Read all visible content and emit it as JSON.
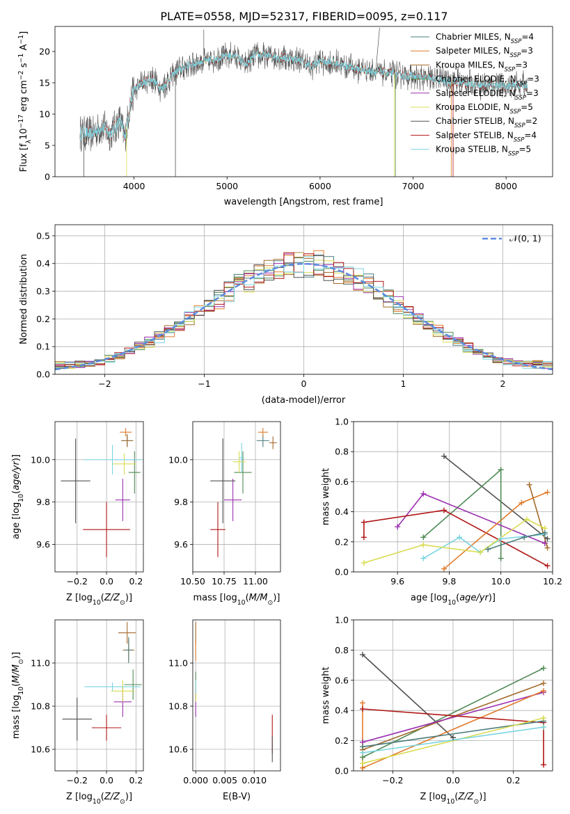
{
  "figure": {
    "title": "PLATE=0558, MJD=52317, FIBERID=0095, z=0.117"
  },
  "colors": [
    "#4a7a7a",
    "#e07a2a",
    "#a46a2a",
    "#4f8a55",
    "#9b30b0",
    "#d8dc50",
    "#505050",
    "#b01515",
    "#7ad4e0"
  ],
  "chart_data": [
    {
      "id": "spectrum",
      "type": "line",
      "xlabel": "wavelength [Angstrom, rest frame]",
      "ylabel": "Flux [f_λ 10^−17 erg cm^−2 s^−1 A^−1]",
      "xlim": [
        3150,
        8500
      ],
      "ylim": [
        0,
        24
      ],
      "xticks": [
        4000,
        5000,
        6000,
        7000,
        8000
      ],
      "yticks": [
        0,
        5,
        10,
        15,
        20
      ],
      "legend_position": "top-right",
      "series_labels": [
        [
          "Chabrier MILES, N",
          "SSP",
          "=4"
        ],
        [
          "Salpeter MILES, N",
          "SSP",
          "=3"
        ],
        [
          "Kroupa MILES, N",
          "SSP",
          "=3"
        ],
        [
          "Chabrier ELODIE, N",
          "SSP",
          "=3"
        ],
        [
          "Salpeter ELODIE, N",
          "SSP",
          "=3"
        ],
        [
          "Kroupa ELODIE, N",
          "SSP",
          "=5"
        ],
        [
          "Chabrier STELIB, N",
          "SSP",
          "=2"
        ],
        [
          "Salpeter STELIB, N",
          "SSP",
          "=4"
        ],
        [
          "Kroupa STELIB, N",
          "SSP",
          "=5"
        ]
      ],
      "continuum": [
        [
          3420,
          7.0
        ],
        [
          3550,
          6.8
        ],
        [
          3650,
          8.0
        ],
        [
          3750,
          6.9
        ],
        [
          3850,
          9.0
        ],
        [
          3900,
          6.0
        ],
        [
          3950,
          11.0
        ],
        [
          4000,
          14.0
        ],
        [
          4100,
          15.0
        ],
        [
          4200,
          15.5
        ],
        [
          4300,
          14.0
        ],
        [
          4400,
          16.0
        ],
        [
          4500,
          17.2
        ],
        [
          4600,
          17.8
        ],
        [
          4700,
          18.3
        ],
        [
          4800,
          18.5
        ],
        [
          4900,
          19.0
        ],
        [
          5000,
          19.3
        ],
        [
          5100,
          19.2
        ],
        [
          5200,
          17.8
        ],
        [
          5300,
          19.5
        ],
        [
          5400,
          19.4
        ],
        [
          5500,
          19.2
        ],
        [
          5600,
          19.0
        ],
        [
          5700,
          18.8
        ],
        [
          5800,
          18.6
        ],
        [
          5900,
          17.6
        ],
        [
          6000,
          18.5
        ],
        [
          6100,
          18.3
        ],
        [
          6200,
          18.0
        ],
        [
          6300,
          17.6
        ],
        [
          6400,
          17.2
        ],
        [
          6500,
          17.0
        ],
        [
          6600,
          16.8
        ],
        [
          6700,
          16.6
        ],
        [
          6800,
          16.4
        ],
        [
          6900,
          16.2
        ],
        [
          7000,
          16.0
        ],
        [
          7100,
          15.8
        ],
        [
          7200,
          15.6
        ],
        [
          7400,
          15.2
        ],
        [
          7600,
          14.9
        ],
        [
          7800,
          14.6
        ],
        [
          8000,
          14.5
        ],
        [
          8230,
          14.6
        ]
      ]
    },
    {
      "id": "residuals",
      "type": "line",
      "xlabel": "(data-model)/error",
      "ylabel": "Normed distribution",
      "xlim": [
        -2.5,
        2.5
      ],
      "ylim": [
        0,
        0.54
      ],
      "xticks": [
        -2,
        -1,
        0,
        1,
        2
      ],
      "yticks": [
        0.0,
        0.1,
        0.2,
        0.3,
        0.4,
        0.5
      ],
      "legend_position": "top-right",
      "reference_label": "𝒩(0, 1)",
      "reference_mean": 0,
      "reference_sigma": 1
    },
    {
      "id": "age-vs-Z",
      "type": "scatter",
      "xlabel": "Z [log10(Z/Z⊙)]",
      "ylabel": "age  [log10(age/yr)]",
      "xlim": [
        -0.35,
        0.25
      ],
      "ylim": [
        9.47,
        10.18
      ],
      "xticks": [
        -0.2,
        0.0,
        0.2
      ],
      "yticks": [
        9.6,
        9.8,
        10.0
      ],
      "points": [
        {
          "x": 0.14,
          "y": 10.09,
          "xerr": 0.04,
          "yerr": 0.03,
          "c": 0
        },
        {
          "x": 0.13,
          "y": 10.13,
          "xerr": 0.04,
          "yerr": 0.02,
          "c": 1
        },
        {
          "x": 0.14,
          "y": 10.09,
          "xerr": 0.04,
          "yerr": 0.03,
          "c": 2
        },
        {
          "x": 0.19,
          "y": 9.94,
          "xerr": 0.04,
          "yerr": 0.1,
          "c": 3
        },
        {
          "x": 0.11,
          "y": 9.81,
          "xerr": 0.05,
          "yerr": 0.1,
          "c": 4
        },
        {
          "x": 0.12,
          "y": 9.98,
          "xerr": 0.08,
          "yerr": 0.05,
          "c": 5
        },
        {
          "x": -0.21,
          "y": 9.9,
          "xerr": 0.1,
          "yerr": 0.2,
          "c": 6
        },
        {
          "x": 0.0,
          "y": 9.67,
          "xerr": 0.16,
          "yerr": 0.13,
          "c": 7
        },
        {
          "x": 0.04,
          "y": 10.0,
          "xerr": 0.2,
          "yerr": 0.07,
          "c": 8
        }
      ]
    },
    {
      "id": "age-vs-mass",
      "type": "scatter",
      "xlabel": "mass [log10(M/M⊙)]",
      "ylabel": "",
      "xlim": [
        10.5,
        11.2
      ],
      "ylim": [
        9.47,
        10.18
      ],
      "xticks": [
        10.5,
        10.75,
        11.0
      ],
      "yticks": [
        9.6,
        9.8,
        10.0
      ],
      "points": [
        {
          "x": 11.06,
          "y": 10.09,
          "xerr": 0.05,
          "yerr": 0.03,
          "c": 0
        },
        {
          "x": 11.06,
          "y": 10.13,
          "xerr": 0.04,
          "yerr": 0.02,
          "c": 1
        },
        {
          "x": 11.14,
          "y": 10.08,
          "xerr": 0.03,
          "yerr": 0.03,
          "c": 2
        },
        {
          "x": 10.9,
          "y": 9.94,
          "xerr": 0.07,
          "yerr": 0.1,
          "c": 3
        },
        {
          "x": 10.82,
          "y": 9.81,
          "xerr": 0.07,
          "yerr": 0.1,
          "c": 4
        },
        {
          "x": 10.87,
          "y": 9.99,
          "xerr": 0.05,
          "yerr": 0.05,
          "c": 5
        },
        {
          "x": 10.74,
          "y": 9.9,
          "xerr": 0.1,
          "yerr": 0.2,
          "c": 6
        },
        {
          "x": 10.7,
          "y": 9.67,
          "xerr": 0.06,
          "yerr": 0.13,
          "c": 7
        },
        {
          "x": 10.89,
          "y": 10.01,
          "xerr": 0.02,
          "yerr": 0.07,
          "c": 8
        }
      ]
    },
    {
      "id": "mw-vs-age",
      "type": "line",
      "xlabel": "age  [log10(age/yr)]",
      "ylabel": "mass weight",
      "xlim": [
        9.43,
        10.2
      ],
      "ylim": [
        0.0,
        1.0
      ],
      "xticks": [
        9.6,
        9.8,
        10.0,
        10.2
      ],
      "yticks": [
        0.0,
        0.2,
        0.4,
        0.6,
        0.8,
        1.0
      ],
      "series": [
        {
          "c": 6,
          "points": [
            [
              9.78,
              0.77
            ],
            [
              10.18,
              0.22
            ]
          ]
        },
        {
          "c": 3,
          "points": [
            [
              9.7,
              0.23
            ],
            [
              10.0,
              0.68
            ],
            [
              10.0,
              0.09
            ]
          ]
        },
        {
          "c": 4,
          "points": [
            [
              9.6,
              0.3
            ],
            [
              9.7,
              0.52
            ],
            [
              10.17,
              0.19
            ]
          ]
        },
        {
          "c": 7,
          "points": [
            [
              9.47,
              0.23
            ],
            [
              9.47,
              0.33
            ],
            [
              9.78,
              0.41
            ],
            [
              10.18,
              0.04
            ]
          ]
        },
        {
          "c": 1,
          "points": [
            [
              9.78,
              0.02
            ],
            [
              10.08,
              0.46
            ],
            [
              10.18,
              0.53
            ]
          ]
        },
        {
          "c": 2,
          "points": [
            [
              10.11,
              0.58
            ],
            [
              10.18,
              0.16
            ]
          ]
        },
        {
          "c": 8,
          "points": [
            [
              9.7,
              0.09
            ],
            [
              9.84,
              0.23
            ],
            [
              9.92,
              0.13
            ],
            [
              10.0,
              0.22
            ],
            [
              10.17,
              0.25
            ]
          ]
        },
        {
          "c": 5,
          "points": [
            [
              9.47,
              0.06
            ],
            [
              9.7,
              0.18
            ],
            [
              9.92,
              0.13
            ],
            [
              10.1,
              0.35
            ],
            [
              10.17,
              0.29
            ]
          ]
        },
        {
          "c": 0,
          "points": [
            [
              9.95,
              0.15
            ],
            [
              10.09,
              0.23
            ],
            [
              10.17,
              0.26
            ]
          ]
        }
      ]
    },
    {
      "id": "mass-vs-Z",
      "type": "scatter",
      "xlabel": "Z [log10(Z/Z⊙)]",
      "ylabel": "mass [log10(M/M⊙)]",
      "xlim": [
        -0.35,
        0.25
      ],
      "ylim": [
        10.5,
        11.2
      ],
      "xticks": [
        -0.2,
        0.0,
        0.2
      ],
      "yticks": [
        10.6,
        10.8,
        11.0
      ],
      "points": [
        {
          "x": 0.14,
          "y": 11.14,
          "xerr": 0.06,
          "yerr": 0.05,
          "c": 2
        },
        {
          "x": 0.15,
          "y": 11.06,
          "xerr": 0.04,
          "yerr": 0.05,
          "c": 1
        },
        {
          "x": 0.15,
          "y": 11.06,
          "xerr": 0.03,
          "yerr": 0.06,
          "c": 0
        },
        {
          "x": 0.18,
          "y": 10.9,
          "xerr": 0.06,
          "yerr": 0.07,
          "c": 3
        },
        {
          "x": 0.11,
          "y": 10.82,
          "xerr": 0.06,
          "yerr": 0.07,
          "c": 4
        },
        {
          "x": 0.11,
          "y": 10.87,
          "xerr": 0.08,
          "yerr": 0.05,
          "c": 5
        },
        {
          "x": -0.2,
          "y": 10.74,
          "xerr": 0.1,
          "yerr": 0.1,
          "c": 6
        },
        {
          "x": 0.0,
          "y": 10.7,
          "xerr": 0.1,
          "yerr": 0.06,
          "c": 7
        },
        {
          "x": 0.04,
          "y": 10.89,
          "xerr": 0.19,
          "yerr": 0.02,
          "c": 8
        }
      ]
    },
    {
      "id": "mass-vs-ebv",
      "type": "scatter",
      "xlabel": "E(B-V)",
      "ylabel": "",
      "xlim": [
        -0.0005,
        0.0145
      ],
      "ylim": [
        10.5,
        11.2
      ],
      "xticks": [
        0.0,
        0.005,
        0.01
      ],
      "yticks": [
        10.6,
        10.8,
        11.0
      ],
      "points": [
        {
          "x": 0.0,
          "y": 11.14,
          "xerr": 0.0,
          "yerr": 0.05,
          "c": 2
        },
        {
          "x": 0.0,
          "y": 11.06,
          "xerr": 0.0,
          "yerr": 0.05,
          "c": 1
        },
        {
          "x": 0.0,
          "y": 10.9,
          "xerr": 0.0,
          "yerr": 0.06,
          "c": 3
        },
        {
          "x": 0.0,
          "y": 10.82,
          "xerr": 0.0,
          "yerr": 0.07,
          "c": 4
        },
        {
          "x": 0.0,
          "y": 10.87,
          "xerr": 0.0,
          "yerr": 0.05,
          "c": 5
        },
        {
          "x": 0.0,
          "y": 10.89,
          "xerr": 0.0,
          "yerr": 0.03,
          "c": 8
        },
        {
          "x": 0.0131,
          "y": 10.67,
          "xerr": 0.0,
          "yerr": 0.09,
          "c": 7
        },
        {
          "x": 0.0131,
          "y": 10.6,
          "xerr": 0.0,
          "yerr": 0.06,
          "c": 6
        }
      ]
    },
    {
      "id": "mw-vs-Z",
      "type": "line",
      "xlabel": "Z [log10(Z/Z⊙)]",
      "ylabel": "mass weight",
      "xlim": [
        -0.33,
        0.33
      ],
      "ylim": [
        0.0,
        1.0
      ],
      "xticks": [
        -0.2,
        0.0,
        0.2
      ],
      "yticks": [
        0.0,
        0.2,
        0.4,
        0.6,
        0.8,
        1.0
      ],
      "series": [
        {
          "c": 6,
          "points": [
            [
              -0.3,
              0.77
            ],
            [
              0.0,
              0.22
            ]
          ]
        },
        {
          "c": 3,
          "points": [
            [
              -0.3,
              0.09
            ],
            [
              0.3,
              0.68
            ]
          ]
        },
        {
          "c": 2,
          "points": [
            [
              -0.3,
              0.14
            ],
            [
              0.3,
              0.58
            ]
          ]
        },
        {
          "c": 4,
          "points": [
            [
              -0.3,
              0.19
            ],
            [
              0.3,
              0.52
            ]
          ]
        },
        {
          "c": 1,
          "points": [
            [
              -0.3,
              0.02
            ],
            [
              -0.3,
              0.45
            ],
            [
              -0.3,
              0.02
            ],
            [
              0.3,
              0.53
            ]
          ]
        },
        {
          "c": 7,
          "points": [
            [
              -0.3,
              0.41
            ],
            [
              0.3,
              0.32
            ],
            [
              0.3,
              0.04
            ]
          ]
        },
        {
          "c": 0,
          "points": [
            [
              -0.3,
              0.16
            ],
            [
              0.3,
              0.33
            ]
          ]
        },
        {
          "c": 5,
          "points": [
            [
              -0.3,
              0.05
            ],
            [
              0.3,
              0.35
            ],
            [
              0.3,
              0.29
            ]
          ]
        },
        {
          "c": 8,
          "points": [
            [
              -0.3,
              0.12
            ],
            [
              0.3,
              0.29
            ]
          ]
        }
      ]
    }
  ]
}
